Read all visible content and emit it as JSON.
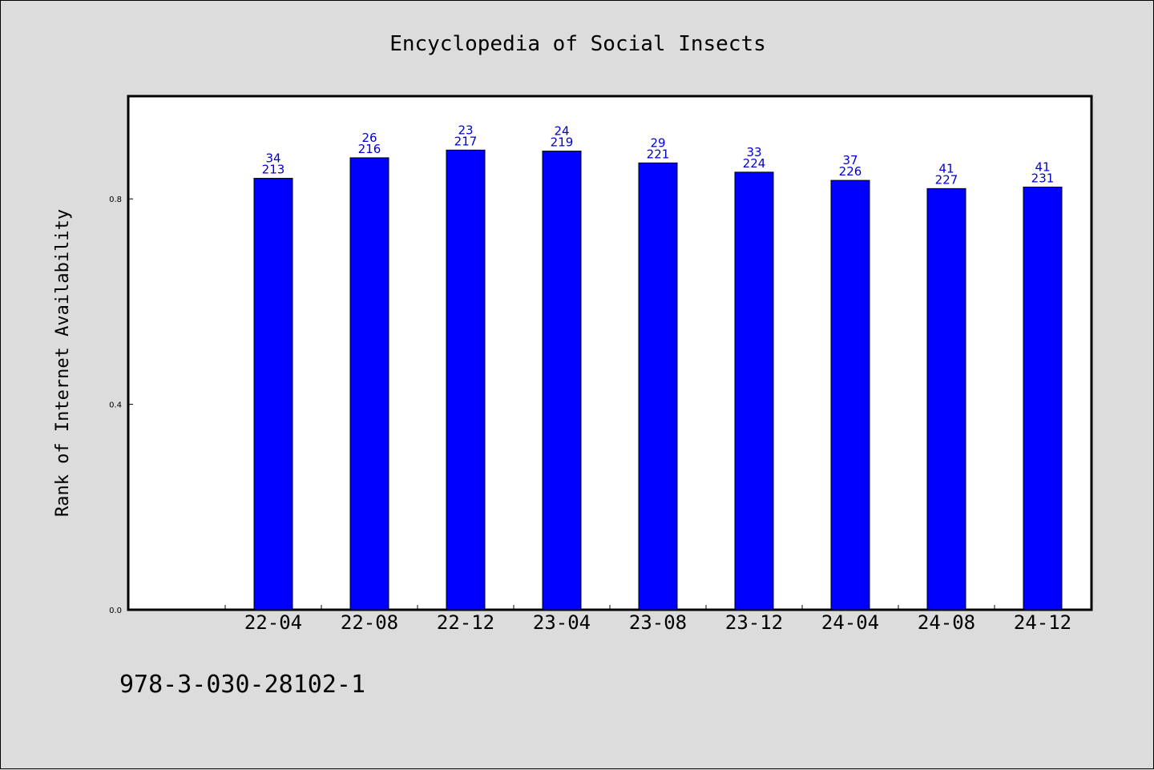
{
  "chart_data": {
    "type": "bar",
    "title": "Encyclopedia of Social Insects",
    "xlabel": "",
    "ylabel": "Rank of Internet Availability",
    "ylim": [
      0,
      1.0
    ],
    "yticks": [
      "0.0",
      "0.4",
      "0.8"
    ],
    "ytick_values": [
      0.0,
      0.4,
      0.8
    ],
    "categories": [
      "22-04",
      "22-08",
      "22-12",
      "23-04",
      "23-08",
      "23-12",
      "24-04",
      "24-08",
      "24-12"
    ],
    "values": [
      0.84,
      0.88,
      0.895,
      0.893,
      0.87,
      0.852,
      0.836,
      0.82,
      0.823
    ],
    "labels_top": [
      "34",
      "26",
      "23",
      "24",
      "29",
      "33",
      "37",
      "41",
      "41"
    ],
    "labels_bottom": [
      "213",
      "216",
      "217",
      "219",
      "221",
      "224",
      "226",
      "227",
      "231"
    ],
    "bar_color": "#0000ff",
    "label_color": "#0000cc",
    "grid": false,
    "legend": "none"
  },
  "footer": {
    "isbn": "978-3-030-28102-1"
  }
}
